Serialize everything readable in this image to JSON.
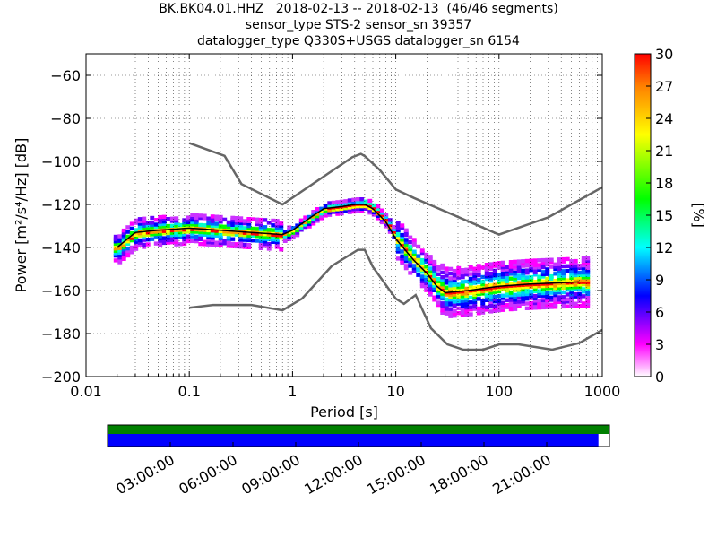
{
  "chart_data": {
    "type": "heatmap",
    "title_lines": [
      "BK.BK04.01.HHZ   2018-02-13 -- 2018-02-13  (46/46 segments)",
      "sensor_type STS-2 sensor_sn 39357",
      "datalogger_type Q330S+USGS datalogger_sn 6154"
    ],
    "xlabel": "Period [s]",
    "ylabel": "Power [m²/s⁴/Hz] [dB]",
    "x_scale": "log",
    "xlim": [
      0.01,
      1000
    ],
    "ylim": [
      -200,
      -50
    ],
    "x_ticks": [
      0.01,
      0.1,
      1,
      10,
      100,
      1000
    ],
    "x_tick_labels": [
      "0.01",
      "0.1",
      "1",
      "10",
      "100",
      "1000"
    ],
    "y_ticks": [
      -200,
      -180,
      -160,
      -140,
      -120,
      -100,
      -80,
      -60
    ],
    "y_tick_labels": [
      "−200",
      "−180",
      "−160",
      "−140",
      "−120",
      "−100",
      "−80",
      "−60"
    ],
    "grid": true,
    "colorbar": {
      "label": "[%]",
      "min": 0,
      "max": 30,
      "ticks": [
        0,
        3,
        6,
        9,
        12,
        15,
        18,
        21,
        24,
        27,
        30
      ],
      "tick_labels": [
        "0",
        "3",
        "6",
        "9",
        "12",
        "15",
        "18",
        "21",
        "24",
        "27",
        "30"
      ],
      "colormap": "pqlx"
    },
    "noise_models": [
      {
        "name": "high-noise-model",
        "x": [
          0.1,
          0.22,
          0.32,
          0.8,
          3.8,
          4.6,
          5.0,
          7.0,
          10.0,
          15.0,
          21.0,
          100.0,
          300.0,
          1000.0
        ],
        "y": [
          -91.5,
          -97.4,
          -110.5,
          -120.0,
          -98.0,
          -96.5,
          -97.5,
          -104.0,
          -113.0,
          -117.0,
          -120.0,
          -134.0,
          -126.0,
          -112.0
        ]
      },
      {
        "name": "low-noise-model",
        "x": [
          0.1,
          0.17,
          0.4,
          0.8,
          1.24,
          2.4,
          4.3,
          5.0,
          6.0,
          10.0,
          12.0,
          15.6,
          21.9,
          31.6,
          45.0,
          70.0,
          101.0,
          154.0,
          328.0,
          600.0,
          1000.0
        ],
        "y": [
          -168.0,
          -166.7,
          -166.7,
          -169.2,
          -163.7,
          -148.6,
          -141.1,
          -141.1,
          -149.0,
          -163.8,
          -166.2,
          -162.1,
          -177.5,
          -185.0,
          -187.5,
          -187.5,
          -185.0,
          -185.0,
          -187.5,
          -184.4,
          -178.3
        ]
      }
    ],
    "mean_curve": {
      "x": [
        0.02,
        0.03,
        0.05,
        0.1,
        0.2,
        0.4,
        0.8,
        1.0,
        1.5,
        2.0,
        3.0,
        4.0,
        5.0,
        6.0,
        8.0,
        10.0,
        15.0,
        20.0,
        25.0,
        30.0,
        50.0,
        100.0,
        200.0,
        600.0
      ],
      "y": [
        -140,
        -133,
        -132,
        -131,
        -132,
        -133,
        -134,
        -132,
        -126,
        -122,
        -121,
        -120,
        -120,
        -122,
        -128,
        -136,
        -146,
        -152,
        -158,
        -161,
        -160,
        -158,
        -157,
        -156
      ]
    },
    "coverage": {
      "data_fraction": 0.978,
      "x_tick_labels": [
        "03:00:00",
        "06:00:00",
        "09:00:00",
        "12:00:00",
        "15:00:00",
        "18:00:00",
        "21:00:00"
      ],
      "x_tick_hours": [
        3,
        6,
        9,
        12,
        15,
        18,
        21
      ],
      "hour_range": [
        0,
        24
      ],
      "colors": {
        "used": "#008000",
        "available": "#0000ff"
      }
    }
  }
}
